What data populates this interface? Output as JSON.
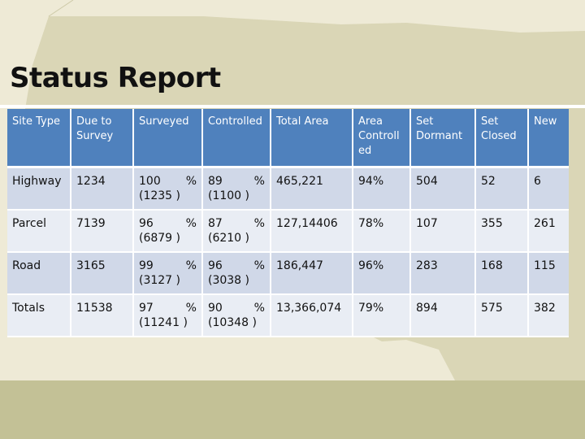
{
  "title": "Status Report",
  "colors": {
    "header": "#4f81bd",
    "row_dark": "#d0d8e8",
    "row_light": "#e9edf4",
    "background": "#eeead6",
    "band": "#c3c196"
  },
  "table": {
    "headers": [
      "Site Type",
      "Due to Survey",
      "Surveyed",
      "Controlled",
      "Total Area",
      "Area Controll ed",
      "Set Dormant",
      "Set Closed",
      "New"
    ],
    "rows": [
      {
        "site_type": "Highway",
        "due": "1234",
        "surveyed_pct": "100 %",
        "surveyed_count": "(1235 )",
        "controlled_pct": "89 %",
        "controlled_count": "(1100 )",
        "total_area": "465,221",
        "area_controlled": "94%",
        "dormant": "504",
        "closed": "52",
        "new": "6"
      },
      {
        "site_type": "Parcel",
        "due": "7139",
        "surveyed_pct": "96 %",
        "surveyed_count": "(6879 )",
        "controlled_pct": "87 %",
        "controlled_count": "(6210 )",
        "total_area": "127,14406",
        "area_controlled": "78%",
        "dormant": "107",
        "closed": "355",
        "new": "261"
      },
      {
        "site_type": "Road",
        "due": "3165",
        "surveyed_pct": "99 %",
        "surveyed_count": "(3127 )",
        "controlled_pct": "96 %",
        "controlled_count": "(3038 )",
        "total_area": "186,447",
        "area_controlled": "96%",
        "dormant": "283",
        "closed": "168",
        "new": "115"
      },
      {
        "site_type": "Totals",
        "due": "11538",
        "surveyed_pct": "97 %",
        "surveyed_count": "(11241 )",
        "controlled_pct": "90 %",
        "controlled_count": "(10348 )",
        "total_area": "13,366,074",
        "area_controlled": "79%",
        "dormant": "894",
        "closed": "575",
        "new": "382"
      }
    ]
  }
}
